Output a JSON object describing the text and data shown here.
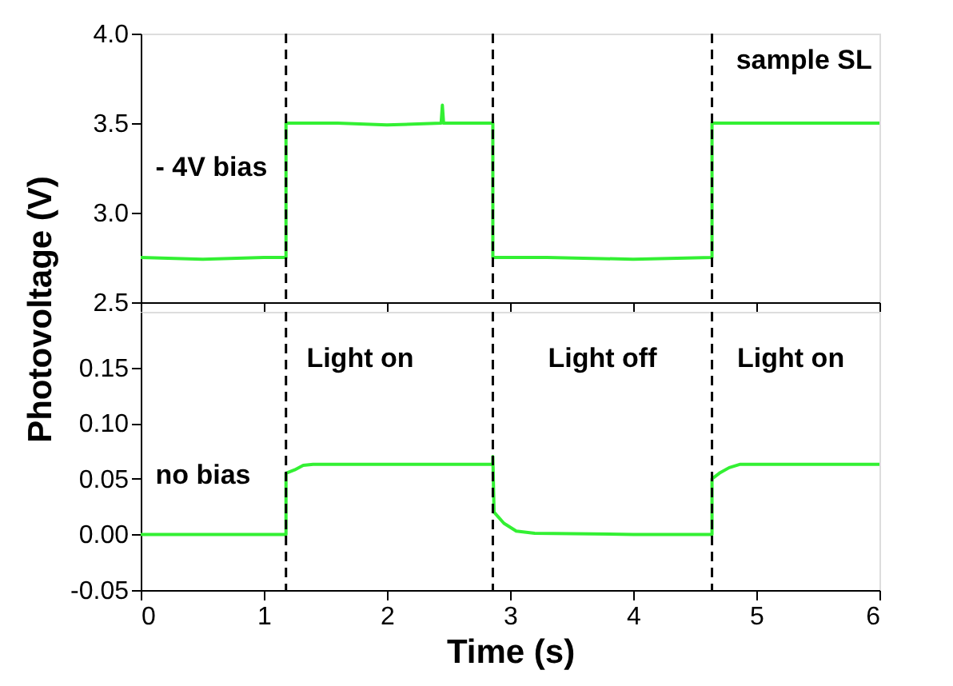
{
  "chart_data": [
    {
      "type": "line",
      "xlim": [
        0,
        6
      ],
      "xticks": [
        0,
        1,
        2,
        3,
        4,
        5,
        6
      ],
      "ylim": [
        2.5,
        4.0
      ],
      "yticks": [
        {
          "value": 2.5,
          "label": "2.5"
        },
        {
          "value": 3,
          "label": "3.0"
        },
        {
          "value": 3.5,
          "label": "3.5"
        },
        {
          "value": 4,
          "label": "4.0"
        }
      ],
      "tick_labels": "y",
      "grid": false,
      "line_style": "solid",
      "series": [
        {
          "color": "#33f033",
          "x": [
            0,
            0.5,
            1.0,
            1.18,
            1.18,
            1.6,
            2.0,
            2.44,
            2.45,
            2.46,
            2.86,
            2.86,
            3.3,
            4.0,
            4.64,
            4.64,
            5.2,
            6.0
          ],
          "values": [
            2.75,
            2.74,
            2.75,
            2.75,
            3.5,
            3.5,
            3.49,
            3.5,
            3.6,
            3.5,
            3.5,
            2.75,
            2.75,
            2.74,
            2.75,
            3.5,
            3.5,
            3.5
          ]
        }
      ],
      "ref_lines": [
        {
          "axis": "x",
          "value": 1.18,
          "line_style": "dashed",
          "color": "#000000"
        },
        {
          "axis": "x",
          "value": 2.86,
          "line_style": "dashed",
          "color": "#000000"
        },
        {
          "axis": "x",
          "value": 4.64,
          "line_style": "dashed",
          "color": "#000000"
        }
      ],
      "annotations": [
        "sample SL",
        "- 4V bias"
      ]
    },
    {
      "type": "line",
      "xlim": [
        0,
        6
      ],
      "xticks": [
        0,
        1,
        2,
        3,
        4,
        5,
        6
      ],
      "ylim": [
        -0.05,
        0.2
      ],
      "yticks": [
        {
          "value": -0.05,
          "label": "-0.05"
        },
        {
          "value": 0,
          "label": "0.00"
        },
        {
          "value": 0.05,
          "label": "0.05"
        },
        {
          "value": 0.1,
          "label": "0.10"
        },
        {
          "value": 0.15,
          "label": "0.15"
        }
      ],
      "xlabel": "Time (s)",
      "ylabel": "Photovoltage (V)",
      "grid": false,
      "line_style": "solid",
      "series": [
        {
          "color": "#33f033",
          "x": [
            0,
            0.6,
            1.18,
            1.18,
            1.25,
            1.32,
            1.4,
            2.0,
            2.86,
            2.86,
            2.87,
            2.95,
            3.05,
            3.2,
            4.0,
            4.64,
            4.64,
            4.7,
            4.78,
            4.87,
            5.5,
            6.0
          ],
          "values": [
            0,
            0,
            0,
            0.055,
            0.058,
            0.062,
            0.063,
            0.063,
            0.063,
            0.07,
            0.02,
            0.01,
            0.003,
            0.001,
            0,
            0,
            0.05,
            0.055,
            0.06,
            0.063,
            0.063,
            0.063
          ]
        }
      ],
      "ref_lines": [
        {
          "axis": "x",
          "value": 1.18,
          "line_style": "dashed",
          "color": "#000000"
        },
        {
          "axis": "x",
          "value": 2.86,
          "line_style": "dashed",
          "color": "#000000"
        },
        {
          "axis": "x",
          "value": 4.64,
          "line_style": "dashed",
          "color": "#000000"
        }
      ],
      "annotations": [
        "Light on",
        "Light off",
        "Light on",
        "no bias"
      ]
    }
  ]
}
